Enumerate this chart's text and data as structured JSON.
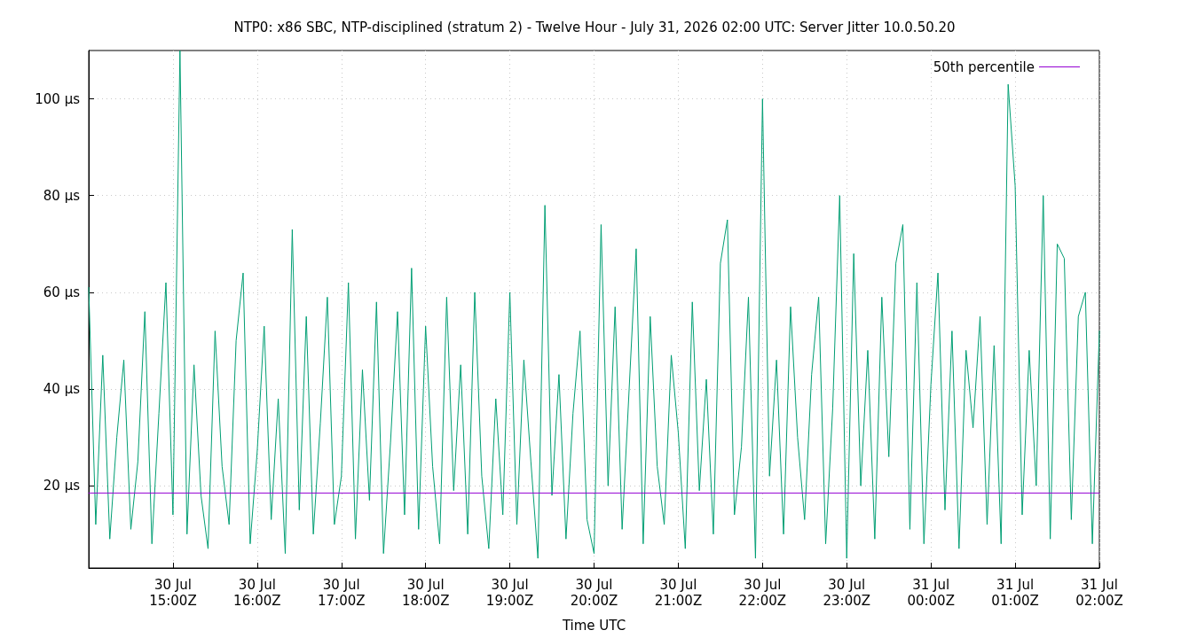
{
  "chart_data": {
    "type": "line",
    "title": "NTP0: x86 SBC, NTP-disciplined (stratum 2) - Twelve Hour - July 31, 2026 02:00 UTC: Server Jitter 10.0.50.20",
    "xlabel": "Time UTC",
    "xlim": [
      "2026-07-30T14:00",
      "2026-07-31T02:00"
    ],
    "xticks": [
      {
        "value": "2026-07-30T15:00",
        "label": "30 Jul\n15:00Z"
      },
      {
        "value": "2026-07-30T16:00",
        "label": "30 Jul\n16:00Z"
      },
      {
        "value": "2026-07-30T17:00",
        "label": "30 Jul\n17:00Z"
      },
      {
        "value": "2026-07-30T18:00",
        "label": "30 Jul\n18:00Z"
      },
      {
        "value": "2026-07-30T19:00",
        "label": "30 Jul\n19:00Z"
      },
      {
        "value": "2026-07-30T20:00",
        "label": "30 Jul\n20:00Z"
      },
      {
        "value": "2026-07-30T21:00",
        "label": "30 Jul\n21:00Z"
      },
      {
        "value": "2026-07-30T22:00",
        "label": "30 Jul\n22:00Z"
      },
      {
        "value": "2026-07-30T23:00",
        "label": "30 Jul\n23:00Z"
      },
      {
        "value": "2026-07-31T00:00",
        "label": "31 Jul\n00:00Z"
      },
      {
        "value": "2026-07-31T01:00",
        "label": "31 Jul\n01:00Z"
      },
      {
        "value": "2026-07-31T02:00",
        "label": "31 Jul\n02:00Z"
      }
    ],
    "ylim": [
      3,
      110
    ],
    "yticks": [
      {
        "value": 20,
        "label": "20 µs"
      },
      {
        "value": 40,
        "label": "40 µs"
      },
      {
        "value": 60,
        "label": "60 µs"
      },
      {
        "value": 80,
        "label": "80 µs"
      },
      {
        "value": 100,
        "label": "100 µs"
      }
    ],
    "grid": true,
    "legend": "top right",
    "marker": "none",
    "line_style": "solid",
    "series": [
      {
        "name": "50th percentile",
        "color": "#9400d3",
        "x": [
          "2026-07-30T14:00",
          "2026-07-31T02:00"
        ],
        "values": [
          18.5,
          18.5
        ]
      },
      {
        "color": "#009e73",
        "x": [
          "2026-07-30T14:00",
          "2026-07-30T14:05",
          "2026-07-30T14:10",
          "2026-07-30T14:15",
          "2026-07-30T14:20",
          "2026-07-30T14:25",
          "2026-07-30T14:30",
          "2026-07-30T14:35",
          "2026-07-30T14:40",
          "2026-07-30T14:45",
          "2026-07-30T14:50",
          "2026-07-30T14:55",
          "2026-07-30T15:00",
          "2026-07-30T15:05",
          "2026-07-30T15:10",
          "2026-07-30T15:15",
          "2026-07-30T15:20",
          "2026-07-30T15:25",
          "2026-07-30T15:30",
          "2026-07-30T15:35",
          "2026-07-30T15:40",
          "2026-07-30T15:45",
          "2026-07-30T15:50",
          "2026-07-30T15:55",
          "2026-07-30T16:00",
          "2026-07-30T16:05",
          "2026-07-30T16:10",
          "2026-07-30T16:15",
          "2026-07-30T16:20",
          "2026-07-30T16:25",
          "2026-07-30T16:30",
          "2026-07-30T16:35",
          "2026-07-30T16:40",
          "2026-07-30T16:45",
          "2026-07-30T16:50",
          "2026-07-30T16:55",
          "2026-07-30T17:00",
          "2026-07-30T17:05",
          "2026-07-30T17:10",
          "2026-07-30T17:15",
          "2026-07-30T17:20",
          "2026-07-30T17:25",
          "2026-07-30T17:30",
          "2026-07-30T17:35",
          "2026-07-30T17:40",
          "2026-07-30T17:45",
          "2026-07-30T17:50",
          "2026-07-30T17:55",
          "2026-07-30T18:00",
          "2026-07-30T18:05",
          "2026-07-30T18:10",
          "2026-07-30T18:15",
          "2026-07-30T18:20",
          "2026-07-30T18:25",
          "2026-07-30T18:30",
          "2026-07-30T18:35",
          "2026-07-30T18:40",
          "2026-07-30T18:45",
          "2026-07-30T18:50",
          "2026-07-30T18:55",
          "2026-07-30T19:00",
          "2026-07-30T19:05",
          "2026-07-30T19:10",
          "2026-07-30T19:15",
          "2026-07-30T19:20",
          "2026-07-30T19:25",
          "2026-07-30T19:30",
          "2026-07-30T19:35",
          "2026-07-30T19:40",
          "2026-07-30T19:45",
          "2026-07-30T19:50",
          "2026-07-30T19:55",
          "2026-07-30T20:00",
          "2026-07-30T20:05",
          "2026-07-30T20:10",
          "2026-07-30T20:15",
          "2026-07-30T20:20",
          "2026-07-30T20:25",
          "2026-07-30T20:30",
          "2026-07-30T20:35",
          "2026-07-30T20:40",
          "2026-07-30T20:45",
          "2026-07-30T20:50",
          "2026-07-30T20:55",
          "2026-07-30T21:00",
          "2026-07-30T21:05",
          "2026-07-30T21:10",
          "2026-07-30T21:15",
          "2026-07-30T21:20",
          "2026-07-30T21:25",
          "2026-07-30T21:30",
          "2026-07-30T21:35",
          "2026-07-30T21:40",
          "2026-07-30T21:45",
          "2026-07-30T21:50",
          "2026-07-30T21:55",
          "2026-07-30T22:00",
          "2026-07-30T22:05",
          "2026-07-30T22:10",
          "2026-07-30T22:15",
          "2026-07-30T22:20",
          "2026-07-30T22:25",
          "2026-07-30T22:30",
          "2026-07-30T22:35",
          "2026-07-30T22:40",
          "2026-07-30T22:45",
          "2026-07-30T22:50",
          "2026-07-30T22:55",
          "2026-07-30T23:00",
          "2026-07-30T23:05",
          "2026-07-30T23:10",
          "2026-07-30T23:15",
          "2026-07-30T23:20",
          "2026-07-30T23:25",
          "2026-07-30T23:30",
          "2026-07-30T23:35",
          "2026-07-30T23:40",
          "2026-07-30T23:45",
          "2026-07-30T23:50",
          "2026-07-30T23:55",
          "2026-07-31T00:00",
          "2026-07-31T00:05",
          "2026-07-31T00:10",
          "2026-07-31T00:15",
          "2026-07-31T00:20",
          "2026-07-31T00:25",
          "2026-07-31T00:30",
          "2026-07-31T00:35",
          "2026-07-31T00:40",
          "2026-07-31T00:45",
          "2026-07-31T00:50",
          "2026-07-31T00:55",
          "2026-07-31T01:00",
          "2026-07-31T01:05",
          "2026-07-31T01:10",
          "2026-07-31T01:15",
          "2026-07-31T01:20",
          "2026-07-31T01:25",
          "2026-07-31T01:30",
          "2026-07-31T01:35",
          "2026-07-31T01:40",
          "2026-07-31T01:45",
          "2026-07-31T01:50",
          "2026-07-31T01:55",
          "2026-07-31T02:00"
        ],
        "values": [
          61,
          12,
          47,
          9,
          30,
          46,
          11,
          25,
          56,
          8,
          35,
          62,
          14,
          110,
          10,
          45,
          18,
          7,
          52,
          24,
          12,
          50,
          64,
          8,
          27,
          53,
          13,
          38,
          6,
          73,
          15,
          55,
          10,
          33,
          59,
          12,
          22,
          62,
          9,
          44,
          17,
          58,
          6,
          29,
          56,
          14,
          65,
          11,
          53,
          24,
          8,
          59,
          19,
          45,
          10,
          60,
          22,
          7,
          38,
          14,
          60,
          12,
          46,
          25,
          5,
          78,
          18,
          43,
          9,
          35,
          52,
          13,
          6,
          74,
          20,
          57,
          11,
          40,
          69,
          8,
          55,
          24,
          12,
          47,
          31,
          7,
          58,
          19,
          42,
          10,
          66,
          75,
          14,
          28,
          59,
          5,
          100,
          22,
          46,
          10,
          57,
          30,
          13,
          43,
          59,
          8,
          36,
          80,
          5,
          68,
          20,
          48,
          9,
          59,
          26,
          66,
          74,
          11,
          62,
          8,
          41,
          64,
          15,
          52,
          7,
          48,
          32,
          55,
          12,
          49,
          8,
          103,
          82,
          14,
          48,
          20,
          80,
          9,
          70,
          67,
          13,
          55,
          60,
          8,
          52
        ]
      }
    ]
  }
}
